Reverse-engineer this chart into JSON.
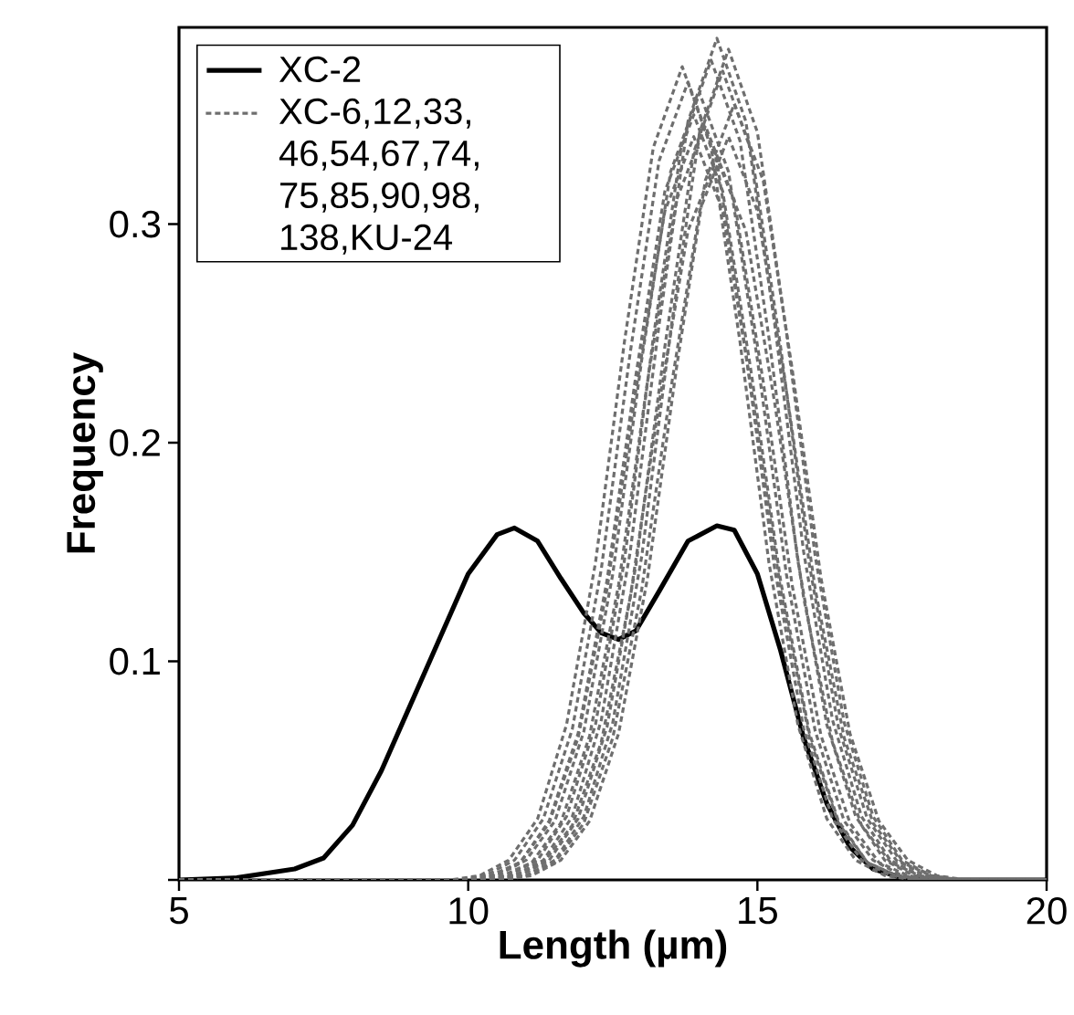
{
  "chart_data": {
    "type": "line",
    "xlabel": "Length (µm)",
    "ylabel": "Frequency",
    "xlim": [
      5,
      20
    ],
    "ylim": [
      0,
      0.39
    ],
    "xticks": [
      5,
      10,
      15,
      20
    ],
    "yticks": [
      {
        "value": 0,
        "label": null
      },
      0.1,
      0.2,
      0.3
    ],
    "legend": "top left",
    "series": [
      {
        "name": "XC-2",
        "color": "#000000",
        "line_style": "solid",
        "x": [
          5,
          6,
          7,
          7.5,
          8,
          8.5,
          9,
          9.5,
          10,
          10.5,
          10.8,
          11.2,
          11.6,
          12,
          12.3,
          12.6,
          12.9,
          13.3,
          13.8,
          14.3,
          14.6,
          15,
          15.4,
          15.8,
          16.2,
          16.6,
          17,
          17.5,
          18,
          20
        ],
        "values": [
          0,
          0.001,
          0.005,
          0.01,
          0.025,
          0.05,
          0.08,
          0.11,
          0.14,
          0.158,
          0.161,
          0.155,
          0.138,
          0.122,
          0.113,
          0.11,
          0.114,
          0.132,
          0.155,
          0.162,
          0.16,
          0.14,
          0.105,
          0.065,
          0.035,
          0.015,
          0.005,
          0.001,
          0,
          0
        ]
      },
      {
        "name": "XC-6,12,33, 46,54,67,74, 75,85,90,98, 138,KU-24",
        "color": "#6e6e6e",
        "line_style": "dashed",
        "x": [
          5,
          9.7,
          10.2,
          10.7,
          11.2,
          11.7,
          12.2,
          12.7,
          13.2,
          13.7,
          14.2,
          14.7,
          15.2,
          15.7,
          16.2,
          16.7,
          17.2,
          17.7,
          20
        ],
        "values": [
          0,
          0,
          0.002,
          0.009,
          0.028,
          0.071,
          0.145,
          0.246,
          0.335,
          0.372,
          0.335,
          0.246,
          0.145,
          0.071,
          0.028,
          0.009,
          0.002,
          0,
          0
        ]
      },
      {
        "color": "#6e6e6e",
        "line_style": "dashed",
        "x": [
          5,
          9.8,
          10.3,
          10.8,
          11.3,
          11.8,
          12.3,
          12.8,
          13.3,
          13.8,
          14.3,
          14.8,
          15.3,
          15.8,
          16.3,
          16.8,
          17.3,
          17.8,
          20
        ],
        "values": [
          0,
          0,
          0.002,
          0.009,
          0.028,
          0.069,
          0.142,
          0.241,
          0.329,
          0.365,
          0.329,
          0.241,
          0.142,
          0.069,
          0.028,
          0.009,
          0.002,
          0,
          0
        ]
      },
      {
        "color": "#6e6e6e",
        "line_style": "dashed",
        "x": [
          5,
          9.9,
          10.4,
          10.9,
          11.4,
          11.9,
          12.4,
          12.9,
          13.4,
          13.9,
          14.4,
          14.9,
          15.4,
          15.9,
          16.4,
          16.9,
          17.4,
          17.9,
          20
        ],
        "values": [
          0,
          0,
          0.002,
          0.008,
          0.027,
          0.067,
          0.137,
          0.231,
          0.315,
          0.35,
          0.315,
          0.231,
          0.137,
          0.067,
          0.027,
          0.008,
          0.002,
          0,
          0
        ]
      },
      {
        "color": "#6e6e6e",
        "line_style": "dashed",
        "x": [
          5,
          10,
          10.5,
          11,
          11.5,
          12,
          12.5,
          13,
          13.5,
          14,
          14.5,
          15,
          15.5,
          16,
          16.5,
          17,
          17.5,
          18,
          20
        ],
        "values": [
          0,
          0,
          0.002,
          0.009,
          0.027,
          0.068,
          0.14,
          0.238,
          0.324,
          0.36,
          0.324,
          0.238,
          0.14,
          0.068,
          0.027,
          0.009,
          0.002,
          0,
          0
        ]
      },
      {
        "color": "#6e6e6e",
        "line_style": "dashed",
        "x": [
          5,
          10.2,
          10.7,
          11.2,
          11.7,
          12.2,
          12.7,
          13.2,
          13.7,
          14.2,
          14.7,
          15.2,
          15.7,
          16.2,
          16.7,
          17.2,
          17.7,
          18.2,
          20
        ],
        "values": [
          0,
          0,
          0.002,
          0.009,
          0.029,
          0.071,
          0.146,
          0.248,
          0.338,
          0.375,
          0.338,
          0.248,
          0.146,
          0.071,
          0.029,
          0.009,
          0.002,
          0,
          0
        ]
      },
      {
        "color": "#6e6e6e",
        "line_style": "dashed",
        "x": [
          5,
          10.3,
          10.8,
          11.3,
          11.8,
          12.3,
          12.8,
          13.3,
          13.8,
          14.3,
          14.8,
          15.3,
          15.8,
          16.3,
          16.8,
          17.3,
          17.8,
          18.3,
          20
        ],
        "values": [
          0,
          0,
          0.002,
          0.009,
          0.029,
          0.073,
          0.15,
          0.254,
          0.347,
          0.385,
          0.347,
          0.254,
          0.15,
          0.073,
          0.029,
          0.009,
          0.002,
          0,
          0
        ]
      },
      {
        "color": "#6e6e6e",
        "line_style": "dashed",
        "x": [
          5,
          10.4,
          10.9,
          11.4,
          11.9,
          12.4,
          12.9,
          13.4,
          13.9,
          14.4,
          14.9,
          15.4,
          15.9,
          16.4,
          16.9,
          17.4,
          17.9,
          18.4,
          20
        ],
        "values": [
          0,
          0,
          0.002,
          0.009,
          0.028,
          0.07,
          0.144,
          0.244,
          0.333,
          0.37,
          0.333,
          0.244,
          0.144,
          0.07,
          0.028,
          0.009,
          0.002,
          0,
          0
        ]
      },
      {
        "color": "#6e6e6e",
        "line_style": "dashed",
        "x": [
          5,
          10.5,
          11,
          11.5,
          12,
          12.5,
          13,
          13.5,
          14,
          14.5,
          15,
          15.5,
          16,
          16.5,
          17,
          17.5,
          18,
          18.5,
          20
        ],
        "values": [
          0,
          0,
          0.002,
          0.008,
          0.026,
          0.065,
          0.133,
          0.224,
          0.306,
          0.34,
          0.306,
          0.224,
          0.133,
          0.065,
          0.026,
          0.008,
          0.002,
          0,
          0
        ]
      },
      {
        "color": "#6e6e6e",
        "line_style": "dashed",
        "x": [
          5,
          10.3,
          10.8,
          11.3,
          11.8,
          12.3,
          12.8,
          13.3,
          13.8,
          14.3,
          14.8,
          15.3,
          15.8,
          16.3,
          16.8,
          17.3,
          17.8,
          18.3,
          20
        ],
        "values": [
          0,
          0,
          0.002,
          0.008,
          0.025,
          0.063,
          0.129,
          0.218,
          0.297,
          0.33,
          0.297,
          0.218,
          0.129,
          0.063,
          0.025,
          0.008,
          0.002,
          0,
          0
        ]
      },
      {
        "color": "#6e6e6e",
        "line_style": "dashed",
        "x": [
          5,
          10.1,
          10.6,
          11.1,
          11.6,
          12.1,
          12.6,
          13.1,
          13.6,
          14.1,
          14.6,
          15.1,
          15.6,
          16.1,
          16.6,
          17.1,
          17.6,
          18.1,
          20
        ],
        "values": [
          0,
          0,
          0.002,
          0.008,
          0.026,
          0.066,
          0.135,
          0.228,
          0.311,
          0.345,
          0.311,
          0.228,
          0.135,
          0.066,
          0.026,
          0.008,
          0.002,
          0,
          0
        ]
      },
      {
        "color": "#6e6e6e",
        "line_style": "dashed",
        "x": [
          5,
          10.6,
          11.1,
          11.6,
          12.1,
          12.6,
          13.1,
          13.6,
          14.1,
          14.6,
          15.1,
          15.6,
          16.1,
          16.6,
          17.1,
          17.6,
          18.1,
          18.6,
          20
        ],
        "values": [
          0,
          0,
          0.002,
          0.009,
          0.027,
          0.067,
          0.138,
          0.234,
          0.32,
          0.355,
          0.32,
          0.234,
          0.138,
          0.067,
          0.027,
          0.009,
          0.002,
          0,
          0
        ]
      },
      {
        "color": "#6e6e6e",
        "line_style": "dashed",
        "x": [
          5,
          9.9,
          10.4,
          10.9,
          11.4,
          11.9,
          12.4,
          12.9,
          13.4,
          13.9,
          14.4,
          14.9,
          15.4,
          15.9,
          16.4,
          16.9,
          17.4,
          17.9,
          20
        ],
        "values": [
          0,
          0,
          0.002,
          0.008,
          0.026,
          0.065,
          0.133,
          0.224,
          0.306,
          0.34,
          0.306,
          0.224,
          0.133,
          0.065,
          0.026,
          0.008,
          0.002,
          0,
          0
        ]
      },
      {
        "color": "#6e6e6e",
        "line_style": "dashed",
        "x": [
          5,
          10.5,
          11,
          11.5,
          12,
          12.5,
          13,
          13.5,
          14,
          14.5,
          15,
          15.5,
          16,
          16.5,
          17,
          17.5,
          18,
          18.5,
          20
        ],
        "values": [
          0,
          0,
          0.002,
          0.009,
          0.029,
          0.072,
          0.148,
          0.251,
          0.342,
          0.38,
          0.342,
          0.251,
          0.148,
          0.072,
          0.029,
          0.009,
          0.002,
          0,
          0
        ]
      }
    ]
  }
}
